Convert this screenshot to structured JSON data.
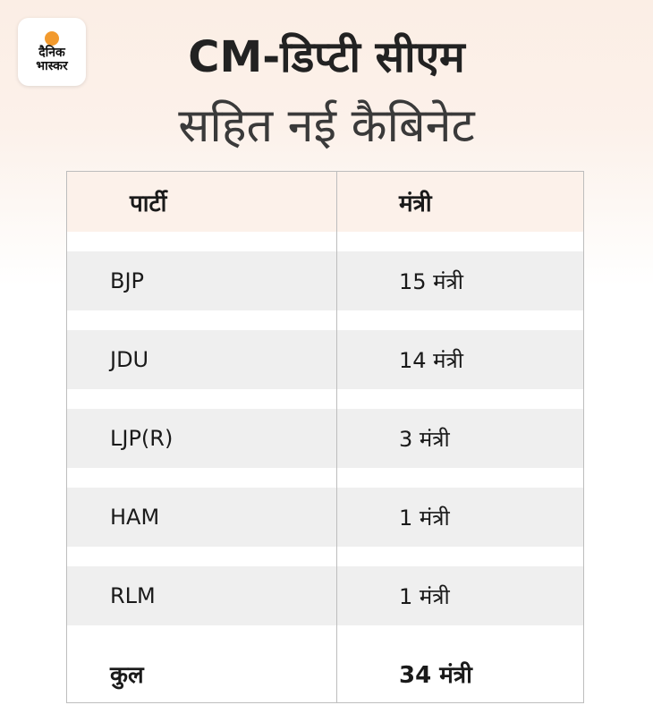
{
  "logo": {
    "line1": "दैनिक",
    "line2": "भास्कर"
  },
  "header": {
    "title_line1": "CM-डिप्टी सीएम",
    "title_line2": "सहित नई कैबिनेट"
  },
  "table": {
    "columns": [
      "पार्टी",
      "मंत्री"
    ],
    "rows": [
      [
        "BJP",
        "15 मंत्री"
      ],
      [
        "JDU",
        "14 मंत्री"
      ],
      [
        "LJP(R)",
        "3 मंत्री"
      ],
      [
        "HAM",
        "1 मंत्री"
      ],
      [
        "RLM",
        "1 मंत्री"
      ]
    ],
    "total": [
      "कुल",
      "34 मंत्री"
    ]
  },
  "colors": {
    "background_top": "#fbeee5",
    "header_row": "#fcf1ea",
    "stripe": "#efefef",
    "logo_dot": "#f29a2e"
  }
}
